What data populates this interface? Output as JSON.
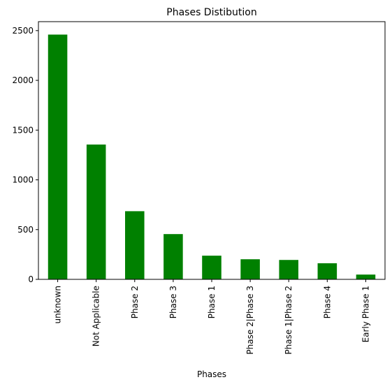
{
  "chart_data": {
    "type": "bar",
    "title": "Phases Distibution",
    "xlabel": "Phases",
    "ylabel": "",
    "categories": [
      "unknown",
      "Not Applicable",
      "Phase 2",
      "Phase 3",
      "Phase 1",
      "Phase 2|Phase 3",
      "Phase 1|Phase 2",
      "Phase 4",
      "Early Phase 1"
    ],
    "values": [
      2460,
      1355,
      685,
      455,
      238,
      202,
      195,
      162,
      48
    ],
    "ylim": [
      0,
      2590
    ],
    "yticks": [
      0,
      500,
      1000,
      1500,
      2000,
      2500
    ],
    "bar_color": "#008000",
    "grid": false,
    "legend": "none"
  }
}
